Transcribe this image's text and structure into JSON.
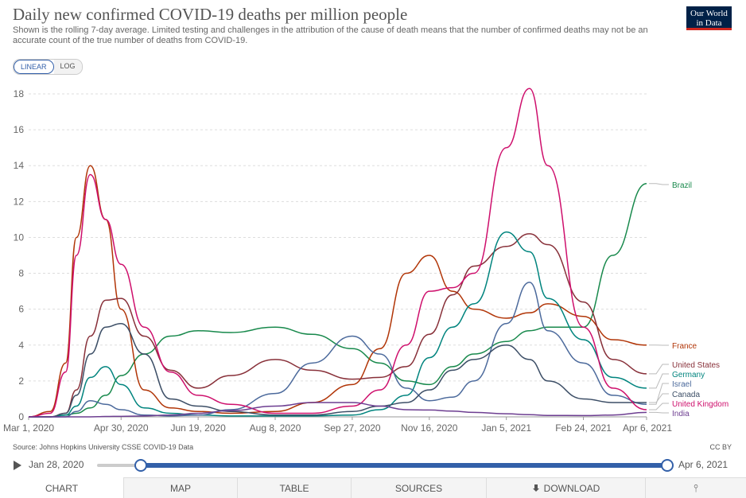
{
  "header": {
    "title": "Daily new confirmed COVID-19 deaths per million people",
    "subtitle": "Shown is the rolling 7-day average. Limited testing and challenges in the attribution of the cause of death means that the number of confirmed deaths may not be an accurate count of the true number of deaths from COVID-19.",
    "logo_line1": "Our World",
    "logo_line2": "in Data",
    "logo_colors": {
      "background": "#002147",
      "underline": "#ce261e"
    }
  },
  "scale_toggle": {
    "linear_label": "LINEAR",
    "log_label": "LOG",
    "selected": "LINEAR"
  },
  "footer": {
    "source": "Source: Johns Hopkins University CSSE COVID-19 Data",
    "license": "CC BY"
  },
  "timeline": {
    "start_label": "Jan 28, 2020",
    "end_label": "Apr 6, 2021",
    "accent": "#3360a9"
  },
  "tabs": [
    {
      "label": "CHART",
      "icon": null,
      "active": true
    },
    {
      "label": "MAP",
      "icon": null,
      "active": false
    },
    {
      "label": "TABLE",
      "icon": null,
      "active": false
    },
    {
      "label": "SOURCES",
      "icon": null,
      "active": false
    },
    {
      "label": "DOWNLOAD",
      "icon": "download-icon",
      "active": false
    },
    {
      "label": "",
      "icon": "share-icon",
      "active": false
    }
  ],
  "chart_data": {
    "type": "line",
    "title": "Daily new confirmed COVID-19 deaths per million people",
    "xlabel": "",
    "ylabel": "",
    "x_ticks": [
      "Mar 1, 2020",
      "Apr 30, 2020",
      "Jun 19, 2020",
      "Aug 8, 2020",
      "Sep 27, 2020",
      "Nov 16, 2020",
      "Jan 5, 2021",
      "Feb 24, 2021",
      "Apr 6, 2021"
    ],
    "y_ticks": [
      0,
      2,
      4,
      6,
      8,
      10,
      12,
      14,
      16,
      18
    ],
    "xlim": [
      "2020-03-01",
      "2021-04-06"
    ],
    "ylim": [
      0,
      18
    ],
    "grid": "horizontal-dashed",
    "legend": "right-end-labels",
    "x": [
      "2020-03-01",
      "2020-03-15",
      "2020-03-25",
      "2020-04-01",
      "2020-04-10",
      "2020-04-20",
      "2020-04-30",
      "2020-05-15",
      "2020-06-01",
      "2020-06-19",
      "2020-07-10",
      "2020-08-08",
      "2020-09-01",
      "2020-09-27",
      "2020-10-15",
      "2020-11-01",
      "2020-11-16",
      "2020-12-01",
      "2020-12-15",
      "2021-01-05",
      "2021-01-20",
      "2021-02-01",
      "2021-02-24",
      "2021-03-15",
      "2021-04-06"
    ],
    "series": [
      {
        "name": "Brazil",
        "color": "#18894c",
        "values": [
          0,
          0,
          0.1,
          0.2,
          0.5,
          1.2,
          2.3,
          3.5,
          4.5,
          4.8,
          4.7,
          5.0,
          4.6,
          3.8,
          3.0,
          2.0,
          1.8,
          2.8,
          3.5,
          4.2,
          4.8,
          5.0,
          5.0,
          9.0,
          13.0
        ]
      },
      {
        "name": "France",
        "color": "#b13507",
        "values": [
          0,
          0.3,
          3.0,
          10.0,
          14.0,
          11.0,
          6.0,
          1.5,
          0.5,
          0.3,
          0.2,
          0.3,
          0.8,
          1.8,
          3.8,
          8.0,
          9.0,
          7.0,
          6.0,
          5.5,
          5.8,
          6.3,
          5.6,
          4.3,
          4.0
        ]
      },
      {
        "name": "United States",
        "color": "#883039",
        "values": [
          0,
          0,
          0.2,
          1.5,
          4.5,
          6.5,
          6.6,
          4.5,
          2.6,
          1.6,
          2.3,
          3.2,
          2.6,
          2.1,
          2.2,
          2.8,
          4.6,
          6.8,
          8.4,
          9.5,
          10.2,
          9.6,
          6.4,
          3.2,
          2.4
        ]
      },
      {
        "name": "Germany",
        "color": "#00847e",
        "values": [
          0,
          0,
          0.1,
          0.6,
          2.2,
          2.8,
          1.8,
          0.5,
          0.2,
          0.1,
          0.05,
          0.05,
          0.05,
          0.1,
          0.4,
          1.2,
          3.3,
          5.0,
          6.3,
          10.3,
          9.2,
          6.6,
          4.3,
          2.2,
          1.6
        ]
      },
      {
        "name": "Israel",
        "color": "#4c6a9c",
        "values": [
          0,
          0,
          0,
          0.3,
          0.9,
          0.7,
          0.4,
          0.1,
          0.05,
          0.1,
          0.4,
          1.3,
          3.0,
          4.5,
          3.5,
          1.6,
          0.9,
          1.1,
          2.0,
          5.2,
          7.5,
          4.8,
          3.0,
          1.2,
          0.7
        ]
      },
      {
        "name": "Canada",
        "color": "#3c4e66",
        "values": [
          0,
          0,
          0.2,
          1.2,
          3.5,
          5.0,
          5.2,
          3.5,
          1.0,
          0.6,
          0.3,
          0.1,
          0.1,
          0.3,
          0.6,
          0.8,
          1.5,
          2.6,
          3.2,
          4.0,
          3.2,
          2.0,
          1.0,
          0.8,
          0.8
        ]
      },
      {
        "name": "United Kingdom",
        "color": "#ce0f6c",
        "values": [
          0,
          0.2,
          2.5,
          9.0,
          13.5,
          11.0,
          8.5,
          5.0,
          2.5,
          1.2,
          0.7,
          0.2,
          0.2,
          0.6,
          1.5,
          4.0,
          7.0,
          7.2,
          8.0,
          15.0,
          18.3,
          14.0,
          5.0,
          1.6,
          0.4
        ]
      },
      {
        "name": "India",
        "color": "#6d3e91",
        "values": [
          0,
          0,
          0,
          0,
          0,
          0.02,
          0.03,
          0.05,
          0.1,
          0.2,
          0.35,
          0.6,
          0.8,
          0.8,
          0.6,
          0.4,
          0.38,
          0.32,
          0.25,
          0.17,
          0.12,
          0.08,
          0.07,
          0.1,
          0.25
        ]
      }
    ]
  }
}
